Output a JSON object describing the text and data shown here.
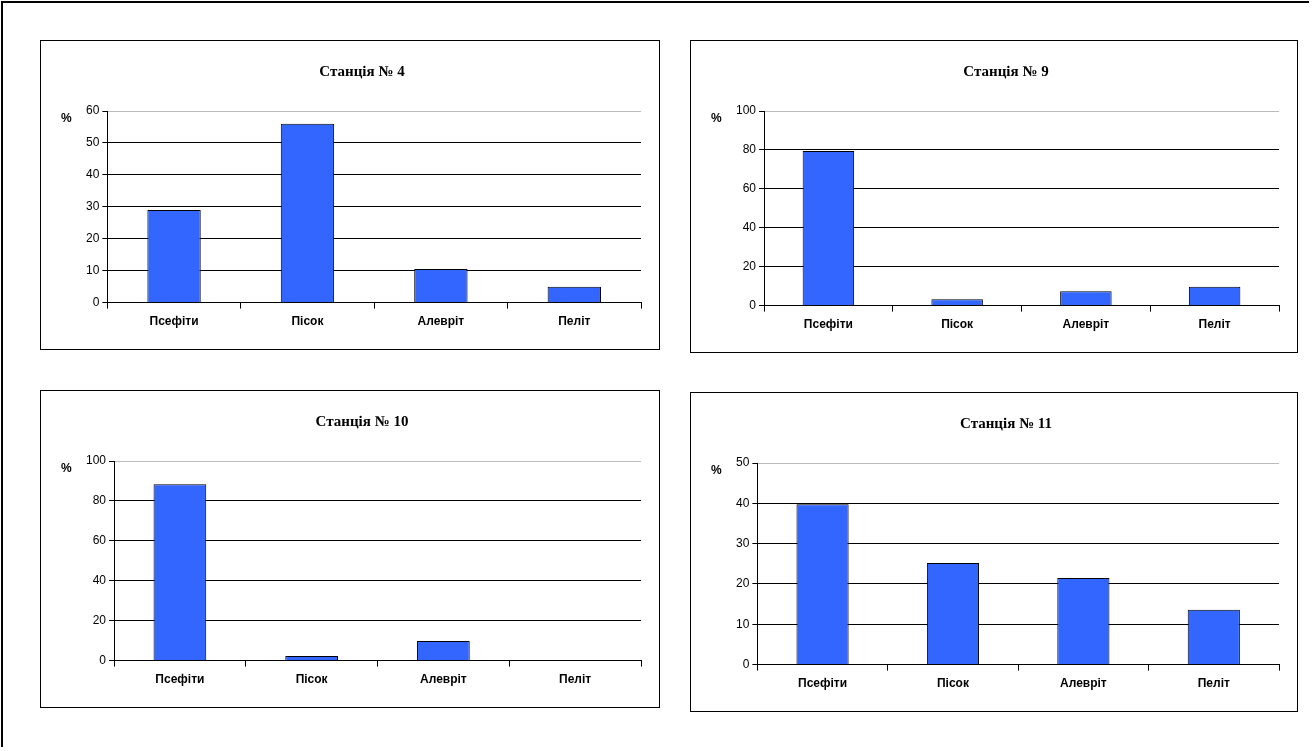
{
  "chart_data": [
    {
      "type": "bar",
      "title": "Станція № 4",
      "ylabel": "%",
      "categories": [
        "Псефіти",
        "Пісок",
        "Алевріт",
        "Пеліт"
      ],
      "values": [
        29,
        56,
        10.5,
        5
      ],
      "color": "#3366ff",
      "ylim": [
        0,
        60
      ],
      "yticks": [
        0,
        10,
        20,
        30,
        40,
        50,
        60
      ],
      "grid": "y"
    },
    {
      "type": "bar",
      "title": "Станція № 9",
      "ylabel": "%",
      "categories": [
        "Псефіти",
        "Пісок",
        "Алевріт",
        "Пеліт"
      ],
      "values": [
        79.5,
        3.2,
        7.4,
        9.7
      ],
      "color": "#3366ff",
      "ylim": [
        0,
        100
      ],
      "yticks": [
        0,
        20,
        40,
        60,
        80,
        100
      ],
      "grid": "y"
    },
    {
      "type": "bar",
      "title": "Станція № 10",
      "ylabel": "%",
      "categories": [
        "Псефіти",
        "Пісок",
        "Алевріт",
        "Пеліт"
      ],
      "values": [
        88.3,
        2.3,
        9.8,
        0
      ],
      "color": "#3366ff",
      "ylim": [
        0,
        100
      ],
      "yticks": [
        0,
        20,
        40,
        60,
        80,
        100
      ],
      "grid": "y"
    },
    {
      "type": "bar",
      "title": "Станція № 11",
      "ylabel": "%",
      "categories": [
        "Псефіти",
        "Пісок",
        "Алевріт",
        "Пеліт"
      ],
      "values": [
        39.8,
        25.2,
        21.5,
        13.6
      ],
      "color": "#3366ff",
      "ylim": [
        0,
        50
      ],
      "yticks": [
        0,
        10,
        20,
        30,
        40,
        50
      ],
      "grid": "y"
    }
  ]
}
